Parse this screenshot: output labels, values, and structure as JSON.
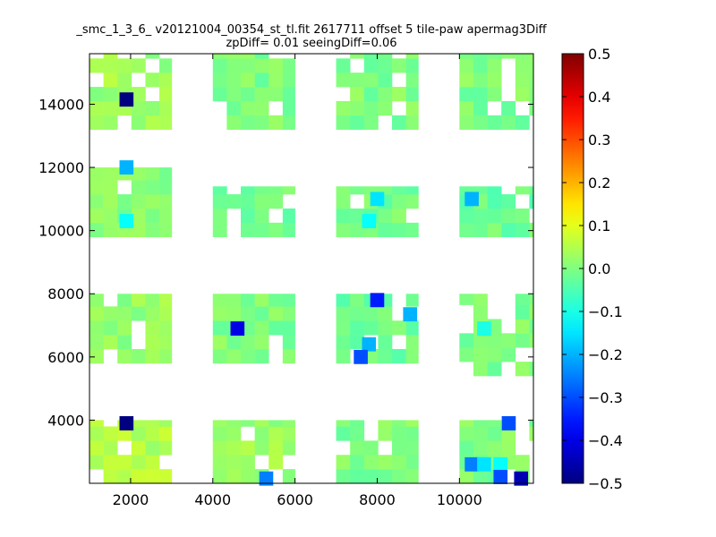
{
  "chart_data": {
    "type": "heatmap",
    "title_lines": [
      "_smc_1_3_6_ v20121004_00354_st_tl.fit 2617711 offset 5 tile-paw apermag3Diff",
      "zpDiff= 0.01 seeingDiff=0.06"
    ],
    "xlabel": "",
    "ylabel": "",
    "xlim": [
      1000,
      11800
    ],
    "ylim": [
      2000,
      15600
    ],
    "xticks": [
      "2000",
      "4000",
      "6000",
      "8000",
      "10000"
    ],
    "yticks": [
      "4000",
      "6000",
      "8000",
      "10000",
      "12000",
      "14000"
    ],
    "cell_size": [
      340,
      450
    ],
    "colorbar": {
      "colormap": "jet",
      "range": [
        -0.5,
        0.5
      ],
      "ticks": [
        "0.5",
        "0.4",
        "0.3",
        "0.2",
        "0.1",
        "0.0",
        "−0.1",
        "−0.2",
        "−0.3",
        "−0.4",
        "−0.5"
      ]
    },
    "grid": false,
    "blocks": [
      {
        "x": [
          1000,
          3000
        ],
        "y": [
          2000,
          4000
        ],
        "value": 0.05
      },
      {
        "x": [
          4000,
          6000
        ],
        "y": [
          2000,
          4000
        ],
        "value": 0.03
      },
      {
        "x": [
          7000,
          9000
        ],
        "y": [
          2000,
          4000
        ],
        "value": 0.0
      },
      {
        "x": [
          10000,
          11800
        ],
        "y": [
          2000,
          4000
        ],
        "value": 0.0
      },
      {
        "x": [
          1000,
          3000
        ],
        "y": [
          5800,
          8000
        ],
        "value": 0.02
      },
      {
        "x": [
          4000,
          6000
        ],
        "y": [
          5800,
          8000
        ],
        "value": 0.0
      },
      {
        "x": [
          7000,
          9000
        ],
        "y": [
          5800,
          8000
        ],
        "value": -0.02
      },
      {
        "x": [
          10000,
          11800
        ],
        "y": [
          5400,
          8000
        ],
        "value": 0.0
      },
      {
        "x": [
          1000,
          3000
        ],
        "y": [
          9800,
          12000
        ],
        "value": 0.01
      },
      {
        "x": [
          4000,
          6000
        ],
        "y": [
          9800,
          11400
        ],
        "value": -0.01
      },
      {
        "x": [
          7000,
          9000
        ],
        "y": [
          9800,
          11400
        ],
        "value": -0.01
      },
      {
        "x": [
          10000,
          11800
        ],
        "y": [
          9800,
          11400
        ],
        "value": -0.02
      },
      {
        "x": [
          1000,
          3000
        ],
        "y": [
          13200,
          15600
        ],
        "value": 0.03
      },
      {
        "x": [
          4000,
          6000
        ],
        "y": [
          13200,
          15600
        ],
        "value": 0.0
      },
      {
        "x": [
          7000,
          9000
        ],
        "y": [
          13200,
          15600
        ],
        "value": 0.0
      },
      {
        "x": [
          10000,
          11800
        ],
        "y": [
          13200,
          15600
        ],
        "value": 0.0
      }
    ],
    "outliers": [
      {
        "x": 1900,
        "y": 14150,
        "value": -0.5
      },
      {
        "x": 1900,
        "y": 12000,
        "value": -0.2
      },
      {
        "x": 1900,
        "y": 10300,
        "value": -0.12
      },
      {
        "x": 1900,
        "y": 3900,
        "value": -0.5
      },
      {
        "x": 4600,
        "y": 6900,
        "value": -0.4
      },
      {
        "x": 5300,
        "y": 2150,
        "value": -0.25
      },
      {
        "x": 7800,
        "y": 10300,
        "value": -0.12
      },
      {
        "x": 7800,
        "y": 6400,
        "value": -0.2
      },
      {
        "x": 7600,
        "y": 6000,
        "value": -0.3
      },
      {
        "x": 8000,
        "y": 7800,
        "value": -0.35
      },
      {
        "x": 8000,
        "y": 11000,
        "value": -0.15
      },
      {
        "x": 8800,
        "y": 7350,
        "value": -0.2
      },
      {
        "x": 10300,
        "y": 11000,
        "value": -0.2
      },
      {
        "x": 10600,
        "y": 6900,
        "value": -0.1
      },
      {
        "x": 10300,
        "y": 2600,
        "value": -0.25
      },
      {
        "x": 10600,
        "y": 2600,
        "value": -0.15
      },
      {
        "x": 11000,
        "y": 2600,
        "value": -0.12
      },
      {
        "x": 11000,
        "y": 2200,
        "value": -0.3
      },
      {
        "x": 11200,
        "y": 3900,
        "value": -0.3
      },
      {
        "x": 11500,
        "y": 2150,
        "value": -0.45
      }
    ]
  }
}
